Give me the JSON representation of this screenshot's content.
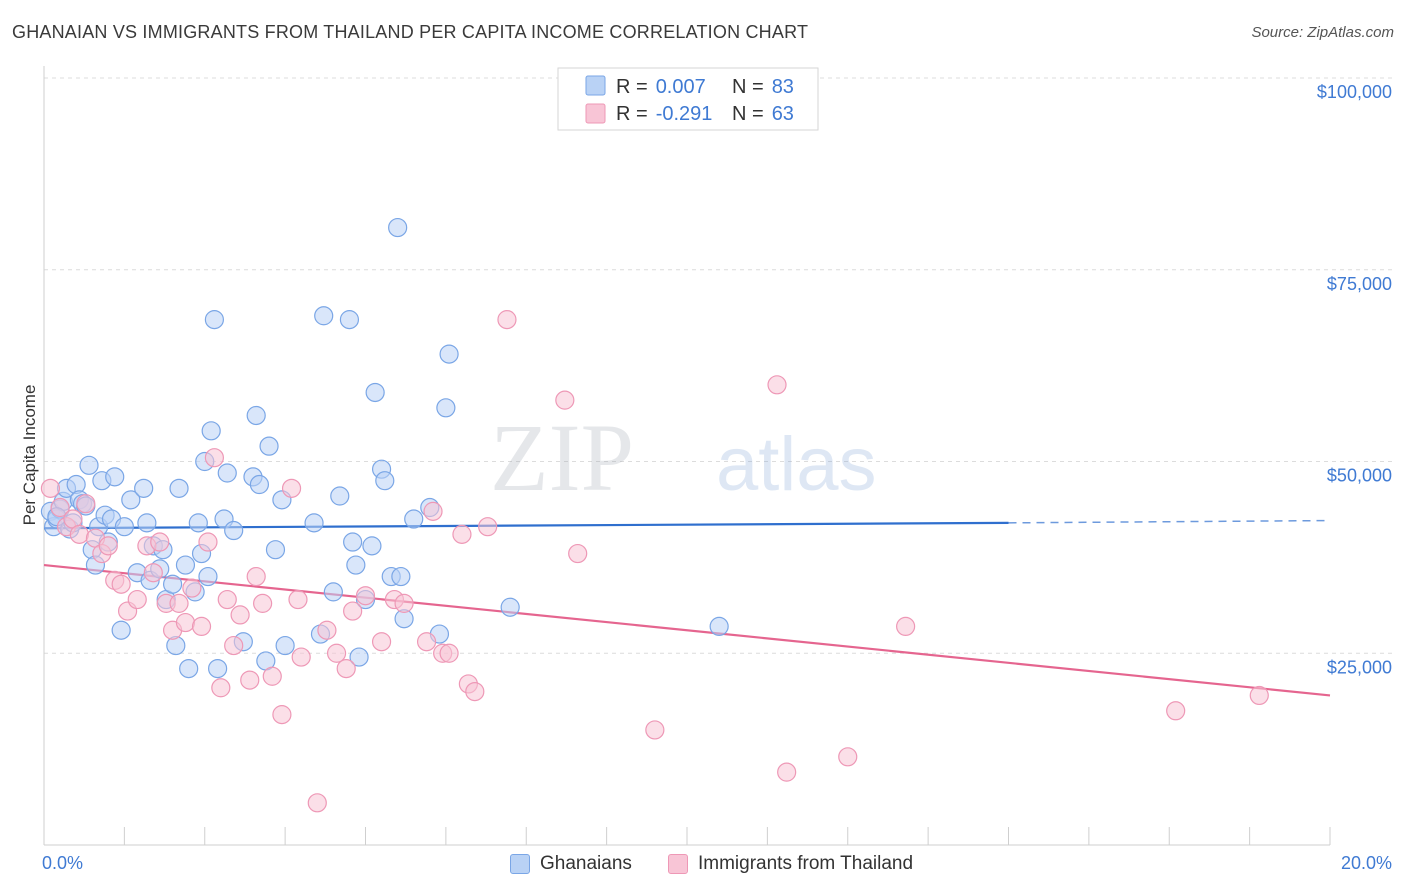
{
  "title": "GHANAIAN VS IMMIGRANTS FROM THAILAND PER CAPITA INCOME CORRELATION CHART",
  "source": "Source: ZipAtlas.com",
  "watermark": {
    "zip": "ZIP",
    "atlas": "atlas"
  },
  "colors": {
    "blue_fill": "#b9d2f5",
    "blue_stroke": "#7aa6e6",
    "blue_line": "#2f6fce",
    "pink_fill": "#f8c5d6",
    "pink_stroke": "#ee98b6",
    "pink_line": "#e5658f",
    "axis_label": "#3f7ad3",
    "grid": "#dcdcdc"
  },
  "legend": {
    "rows": [
      {
        "r_label": "R =",
        "r_value": "0.007",
        "n_label": "N =",
        "n_value": "83"
      },
      {
        "r_label": "R =",
        "r_value": "-0.291",
        "n_label": "N =",
        "n_value": "63"
      }
    ]
  },
  "bottom_legend": {
    "series_a": "Ghanaians",
    "series_b": "Immigrants from Thailand"
  },
  "chart_data": {
    "type": "scatter",
    "ylabel": "Per Capita Income",
    "xlim": [
      0,
      20
    ],
    "ylim": [
      0,
      105000
    ],
    "x_tick_labels": {
      "left": "0.0%",
      "right": "20.0%"
    },
    "y_ticks": [
      {
        "value": 25000,
        "label": "$25,000"
      },
      {
        "value": 50000,
        "label": "$50,000"
      },
      {
        "value": 75000,
        "label": "$75,000"
      },
      {
        "value": 100000,
        "label": "$100,000"
      }
    ],
    "grid": true,
    "legend_position": "top-center",
    "series": [
      {
        "name": "Ghanaians",
        "trend": {
          "x0": 0,
          "y0": 41300,
          "x1": 15.0,
          "y1": 42000,
          "dashed_to_x": 20.0,
          "dashed_y": 42300
        },
        "points": [
          [
            0.1,
            43500
          ],
          [
            0.15,
            41500
          ],
          [
            0.2,
            42500
          ],
          [
            0.25,
            43800
          ],
          [
            0.3,
            44800
          ],
          [
            0.35,
            46500
          ],
          [
            0.4,
            41200
          ],
          [
            0.45,
            42000
          ],
          [
            0.5,
            47000
          ],
          [
            0.55,
            45000
          ],
          [
            0.6,
            44500
          ],
          [
            0.7,
            49500
          ],
          [
            0.75,
            38500
          ],
          [
            0.8,
            36500
          ],
          [
            0.85,
            41500
          ],
          [
            0.9,
            47500
          ],
          [
            0.95,
            43000
          ],
          [
            1.0,
            39500
          ],
          [
            1.05,
            42500
          ],
          [
            1.1,
            48000
          ],
          [
            1.2,
            28000
          ],
          [
            1.25,
            41500
          ],
          [
            1.35,
            45000
          ],
          [
            1.45,
            35500
          ],
          [
            1.55,
            46500
          ],
          [
            1.6,
            42000
          ],
          [
            1.65,
            34500
          ],
          [
            1.7,
            39000
          ],
          [
            1.8,
            36000
          ],
          [
            1.85,
            38500
          ],
          [
            1.9,
            32000
          ],
          [
            2.0,
            34000
          ],
          [
            2.05,
            26000
          ],
          [
            2.1,
            46500
          ],
          [
            2.2,
            36500
          ],
          [
            2.25,
            23000
          ],
          [
            2.35,
            33000
          ],
          [
            2.4,
            42000
          ],
          [
            2.45,
            38000
          ],
          [
            2.5,
            50000
          ],
          [
            2.55,
            35000
          ],
          [
            2.6,
            54000
          ],
          [
            2.65,
            68500
          ],
          [
            2.7,
            23000
          ],
          [
            2.8,
            42500
          ],
          [
            2.85,
            48500
          ],
          [
            2.95,
            41000
          ],
          [
            3.1,
            26500
          ],
          [
            3.25,
            48000
          ],
          [
            3.3,
            56000
          ],
          [
            3.35,
            47000
          ],
          [
            3.45,
            24000
          ],
          [
            3.5,
            52000
          ],
          [
            3.6,
            38500
          ],
          [
            3.7,
            45000
          ],
          [
            3.75,
            26000
          ],
          [
            4.2,
            42000
          ],
          [
            4.3,
            27500
          ],
          [
            4.35,
            69000
          ],
          [
            4.5,
            33000
          ],
          [
            4.6,
            45500
          ],
          [
            4.75,
            68500
          ],
          [
            4.8,
            39500
          ],
          [
            4.85,
            36500
          ],
          [
            4.9,
            24500
          ],
          [
            5.0,
            32000
          ],
          [
            5.1,
            39000
          ],
          [
            5.15,
            59000
          ],
          [
            5.25,
            49000
          ],
          [
            5.3,
            47500
          ],
          [
            5.4,
            35000
          ],
          [
            5.5,
            80500
          ],
          [
            5.55,
            35000
          ],
          [
            5.6,
            29500
          ],
          [
            5.75,
            42500
          ],
          [
            6.0,
            44000
          ],
          [
            6.15,
            27500
          ],
          [
            6.25,
            57000
          ],
          [
            6.3,
            64000
          ],
          [
            7.25,
            31000
          ],
          [
            10.5,
            28500
          ],
          [
            0.2,
            42800
          ],
          [
            0.65,
            44200
          ]
        ]
      },
      {
        "name": "Immigrants from Thailand",
        "trend": {
          "x0": 0,
          "y0": 36500,
          "x1": 20.0,
          "y1": 19500
        },
        "points": [
          [
            0.1,
            46500
          ],
          [
            0.25,
            44000
          ],
          [
            0.35,
            41500
          ],
          [
            0.45,
            42500
          ],
          [
            0.55,
            40500
          ],
          [
            0.65,
            44500
          ],
          [
            0.8,
            40000
          ],
          [
            0.9,
            38000
          ],
          [
            1.0,
            39000
          ],
          [
            1.1,
            34500
          ],
          [
            1.2,
            34000
          ],
          [
            1.3,
            30500
          ],
          [
            1.45,
            32000
          ],
          [
            1.6,
            39000
          ],
          [
            1.7,
            35500
          ],
          [
            1.8,
            39500
          ],
          [
            1.9,
            31500
          ],
          [
            2.0,
            28000
          ],
          [
            2.1,
            31500
          ],
          [
            2.2,
            29000
          ],
          [
            2.3,
            33500
          ],
          [
            2.45,
            28500
          ],
          [
            2.55,
            39500
          ],
          [
            2.65,
            50500
          ],
          [
            2.75,
            20500
          ],
          [
            2.85,
            32000
          ],
          [
            2.95,
            26000
          ],
          [
            3.05,
            30000
          ],
          [
            3.2,
            21500
          ],
          [
            3.3,
            35000
          ],
          [
            3.4,
            31500
          ],
          [
            3.55,
            22000
          ],
          [
            3.7,
            17000
          ],
          [
            3.85,
            46500
          ],
          [
            3.95,
            32000
          ],
          [
            4.0,
            24500
          ],
          [
            4.25,
            5500
          ],
          [
            4.4,
            28000
          ],
          [
            4.55,
            25000
          ],
          [
            4.7,
            23000
          ],
          [
            4.8,
            30500
          ],
          [
            5.0,
            32500
          ],
          [
            5.25,
            26500
          ],
          [
            5.45,
            32000
          ],
          [
            5.6,
            31500
          ],
          [
            5.95,
            26500
          ],
          [
            6.05,
            43500
          ],
          [
            6.2,
            25000
          ],
          [
            6.3,
            25000
          ],
          [
            6.5,
            40500
          ],
          [
            6.6,
            21000
          ],
          [
            6.7,
            20000
          ],
          [
            6.9,
            41500
          ],
          [
            7.2,
            68500
          ],
          [
            8.1,
            58000
          ],
          [
            8.3,
            38000
          ],
          [
            9.5,
            15000
          ],
          [
            11.4,
            60000
          ],
          [
            11.55,
            9500
          ],
          [
            12.5,
            11500
          ],
          [
            13.4,
            28500
          ],
          [
            17.6,
            17500
          ],
          [
            18.9,
            19500
          ]
        ]
      }
    ]
  }
}
